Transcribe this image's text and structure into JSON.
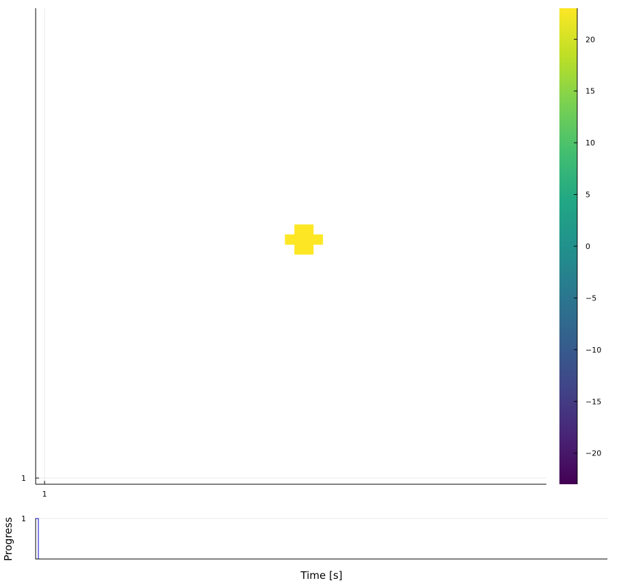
{
  "chart_data": [
    {
      "type": "heatmap",
      "title": "",
      "xlabel": "",
      "ylabel": "",
      "x_ticks": [
        "1"
      ],
      "y_ticks": [
        "1"
      ],
      "grid": true,
      "cells": [
        {
          "x": 28,
          "y": 26,
          "value": 23
        },
        {
          "x": 29,
          "y": 26,
          "value": 23
        },
        {
          "x": 27,
          "y": 25,
          "value": 23
        },
        {
          "x": 28,
          "y": 25,
          "value": 23
        },
        {
          "x": 29,
          "y": 25,
          "value": 23
        },
        {
          "x": 30,
          "y": 25,
          "value": 23
        },
        {
          "x": 28,
          "y": 24,
          "value": 23
        },
        {
          "x": 29,
          "y": 24,
          "value": 23
        }
      ],
      "colorbar": {
        "colormap": "viridis",
        "range": [
          -23,
          23
        ],
        "ticks": [
          -20,
          -15,
          -10,
          -5,
          0,
          5,
          10,
          15,
          20
        ],
        "tick_labels": [
          "−20",
          "−15",
          "−10",
          "−5",
          "0",
          "5",
          "10",
          "15",
          "20"
        ]
      }
    },
    {
      "type": "bar",
      "xlabel": "Time [s]",
      "ylabel": "Progress",
      "y_ticks": [
        "1"
      ],
      "values": [
        1
      ],
      "bar_color": "#0000cc",
      "ylim": [
        0,
        1
      ],
      "grid": true
    }
  ]
}
